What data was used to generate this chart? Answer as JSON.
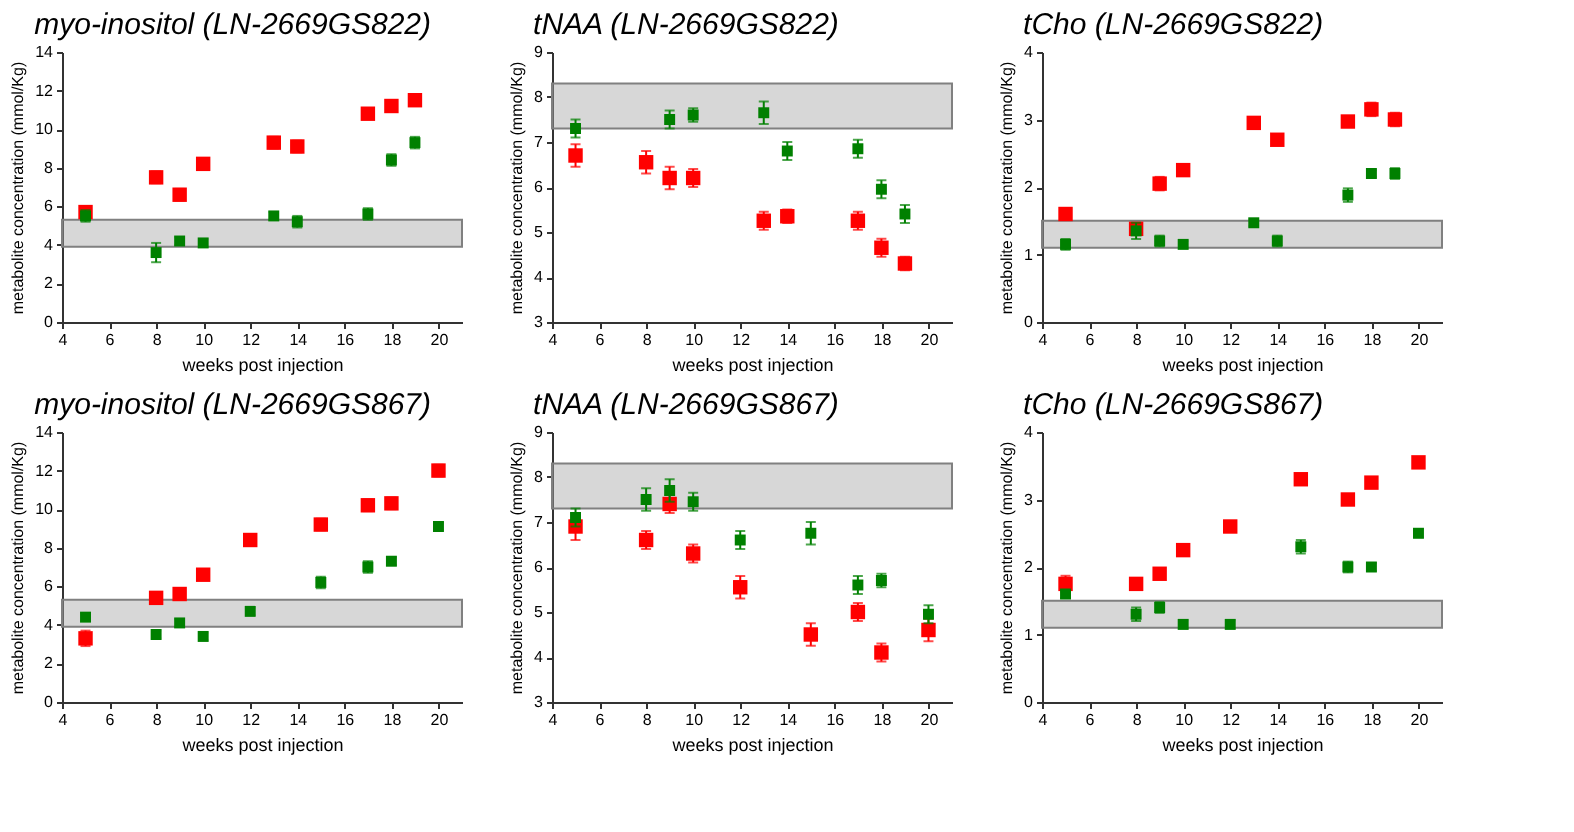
{
  "chart_data": [
    {
      "type": "scatter",
      "title": "myo-inositol (LN-2669GS822)",
      "xlabel": "weeks post injection",
      "ylabel": "metabolite concentration (mmol/Kg)",
      "x": [
        5,
        8,
        9,
        10,
        13,
        14,
        17,
        18,
        19
      ],
      "xlim": [
        4,
        21
      ],
      "xticks": [
        4,
        6,
        8,
        10,
        12,
        14,
        16,
        18,
        20
      ],
      "ylim": [
        0,
        14
      ],
      "yticks": [
        0,
        2,
        4,
        6,
        8,
        10,
        12,
        14
      ],
      "marker": "square",
      "grid": false,
      "legend": false,
      "series": [
        {
          "color": "#ff0000",
          "values": [
            5.7,
            7.5,
            6.6,
            8.2,
            9.3,
            9.1,
            10.8,
            11.2,
            11.5
          ],
          "errors": [
            0.3,
            0.3,
            0.3,
            0.25,
            0.3,
            0.3,
            0.25,
            0.25,
            0.25
          ]
        },
        {
          "color": "#008000",
          "values": [
            5.5,
            3.6,
            4.2,
            4.1,
            5.5,
            5.2,
            5.6,
            8.4,
            9.3
          ],
          "errors": [
            0.3,
            0.5,
            0.2,
            0.2,
            0.2,
            0.3,
            0.3,
            0.3,
            0.3
          ]
        }
      ],
      "bands": [
        {
          "axis": "y",
          "from": 3.9,
          "to": 5.3,
          "color": "#a6a6a6"
        }
      ]
    },
    {
      "type": "scatter",
      "title": "tNAA (LN-2669GS822)",
      "xlabel": "weeks post injection",
      "ylabel": "metabolite concentration (mmol/Kg)",
      "xlim": [
        4,
        21
      ],
      "xticks": [
        4,
        6,
        8,
        10,
        12,
        14,
        16,
        18,
        20
      ],
      "ylim": [
        3,
        9
      ],
      "yticks": [
        3,
        4,
        5,
        6,
        7,
        8,
        9
      ],
      "marker": "square",
      "grid": false,
      "legend": false,
      "series": [
        {
          "color": "#ff0000",
          "x": [
            5,
            8,
            9,
            10,
            13,
            14,
            17,
            18,
            19
          ],
          "values": [
            6.7,
            6.55,
            6.2,
            6.2,
            5.25,
            5.35,
            5.25,
            4.65,
            4.3
          ],
          "errors": [
            0.25,
            0.25,
            0.25,
            0.2,
            0.2,
            0.15,
            0.2,
            0.2,
            0.15
          ]
        },
        {
          "color": "#008000",
          "x": [
            5,
            9,
            10,
            13,
            14,
            17,
            18,
            19
          ],
          "values": [
            7.3,
            7.5,
            7.6,
            7.65,
            6.8,
            6.85,
            5.95,
            5.4
          ],
          "errors": [
            0.2,
            0.2,
            0.15,
            0.25,
            0.2,
            0.2,
            0.2,
            0.2
          ]
        }
      ],
      "bands": [
        {
          "axis": "y",
          "from": 7.3,
          "to": 8.3,
          "color": "#a6a6a6"
        }
      ]
    },
    {
      "type": "scatter",
      "title": "tCho (LN-2669GS822)",
      "xlabel": "weeks post injection",
      "ylabel": "metabolite concentration (mmol/Kg)",
      "x": [
        5,
        8,
        9,
        10,
        13,
        14,
        17,
        18,
        19
      ],
      "xlim": [
        4,
        21
      ],
      "xticks": [
        4,
        6,
        8,
        10,
        12,
        14,
        16,
        18,
        20
      ],
      "ylim": [
        0,
        4
      ],
      "yticks": [
        0,
        1,
        2,
        3,
        4
      ],
      "marker": "square",
      "grid": false,
      "legend": false,
      "series": [
        {
          "color": "#ff0000",
          "values": [
            1.6,
            1.38,
            2.05,
            2.25,
            2.95,
            2.7,
            2.97,
            3.15,
            3.0
          ],
          "errors": [
            0.08,
            0.08,
            0.1,
            0.08,
            0.08,
            0.08,
            0.05,
            0.1,
            0.1
          ]
        },
        {
          "color": "#008000",
          "values": [
            1.15,
            1.35,
            1.2,
            1.15,
            1.47,
            1.2,
            1.88,
            2.2,
            2.2
          ],
          "errors": [
            0.08,
            0.12,
            0.08,
            0.05,
            0.05,
            0.08,
            0.1,
            0.05,
            0.08
          ]
        }
      ],
      "bands": [
        {
          "axis": "y",
          "from": 1.1,
          "to": 1.5,
          "color": "#a6a6a6"
        }
      ]
    },
    {
      "type": "scatter",
      "title": "myo-inositol (LN-2669GS867)",
      "xlabel": "weeks post injection",
      "ylabel": "metabolite concentration (mmol/Kg)",
      "x": [
        5,
        8,
        9,
        10,
        12,
        15,
        17,
        18,
        20
      ],
      "xlim": [
        4,
        21
      ],
      "xticks": [
        4,
        6,
        8,
        10,
        12,
        14,
        16,
        18,
        20
      ],
      "ylim": [
        0,
        14
      ],
      "yticks": [
        0,
        2,
        4,
        6,
        8,
        10,
        12,
        14
      ],
      "marker": "square",
      "grid": false,
      "legend": false,
      "series": [
        {
          "color": "#ff0000",
          "values": [
            3.3,
            5.4,
            5.6,
            6.6,
            8.4,
            9.2,
            10.2,
            10.3,
            12.0
          ],
          "errors": [
            0.4,
            0.2,
            0.2,
            0.2,
            0.2,
            0.3,
            0.3,
            0.3,
            0.3
          ]
        },
        {
          "color": "#008000",
          "values": [
            4.4,
            3.5,
            4.1,
            3.4,
            4.7,
            6.2,
            7.0,
            7.3,
            9.1
          ],
          "errors": [
            0.2,
            0.2,
            0.2,
            0.2,
            0.2,
            0.3,
            0.3,
            0.2,
            0.2
          ]
        }
      ],
      "bands": [
        {
          "axis": "y",
          "from": 3.9,
          "to": 5.3,
          "color": "#a6a6a6"
        }
      ]
    },
    {
      "type": "scatter",
      "title": "tNAA (LN-2669GS867)",
      "xlabel": "weeks post injection",
      "ylabel": "metabolite concentration (mmol/Kg)",
      "x": [
        5,
        8,
        9,
        10,
        12,
        15,
        17,
        18,
        20
      ],
      "xlim": [
        4,
        21
      ],
      "xticks": [
        4,
        6,
        8,
        10,
        12,
        14,
        16,
        18,
        20
      ],
      "ylim": [
        3,
        9
      ],
      "yticks": [
        3,
        4,
        5,
        6,
        7,
        8,
        9
      ],
      "marker": "square",
      "grid": false,
      "legend": false,
      "series": [
        {
          "color": "#ff0000",
          "values": [
            6.9,
            6.6,
            7.4,
            6.3,
            5.55,
            4.5,
            5.0,
            4.1,
            4.6
          ],
          "errors": [
            0.3,
            0.2,
            0.2,
            0.2,
            0.25,
            0.25,
            0.2,
            0.2,
            0.25
          ]
        },
        {
          "color": "#008000",
          "values": [
            7.1,
            7.5,
            7.7,
            7.45,
            6.6,
            6.75,
            5.6,
            5.7,
            4.95
          ],
          "errors": [
            0.2,
            0.25,
            0.25,
            0.2,
            0.2,
            0.25,
            0.2,
            0.15,
            0.2
          ]
        }
      ],
      "bands": [
        {
          "axis": "y",
          "from": 7.3,
          "to": 8.3,
          "color": "#a6a6a6"
        }
      ]
    },
    {
      "type": "scatter",
      "title": "tCho (LN-2669GS867)",
      "xlabel": "weeks post injection",
      "ylabel": "metabolite concentration (mmol/Kg)",
      "x": [
        5,
        8,
        9,
        10,
        12,
        15,
        17,
        18,
        20
      ],
      "xlim": [
        4,
        21
      ],
      "xticks": [
        4,
        6,
        8,
        10,
        12,
        14,
        16,
        18,
        20
      ],
      "ylim": [
        0,
        4
      ],
      "yticks": [
        0,
        1,
        2,
        3,
        4
      ],
      "marker": "square",
      "grid": false,
      "legend": false,
      "series": [
        {
          "color": "#ff0000",
          "values": [
            1.75,
            1.75,
            1.9,
            2.25,
            2.6,
            3.3,
            3.0,
            3.25,
            3.55
          ],
          "errors": [
            0.12,
            0.08,
            0.08,
            0.08,
            0.06,
            0.08,
            0.08,
            0.08,
            0.08
          ]
        },
        {
          "color": "#008000",
          "values": [
            1.6,
            1.3,
            1.4,
            1.15,
            1.15,
            2.3,
            2.0,
            2.0,
            2.5
          ],
          "errors": [
            0.06,
            0.1,
            0.08,
            0.06,
            0.06,
            0.1,
            0.08,
            0.06,
            0.06
          ]
        }
      ],
      "bands": [
        {
          "axis": "y",
          "from": 1.1,
          "to": 1.5,
          "color": "#a6a6a6"
        }
      ]
    }
  ]
}
